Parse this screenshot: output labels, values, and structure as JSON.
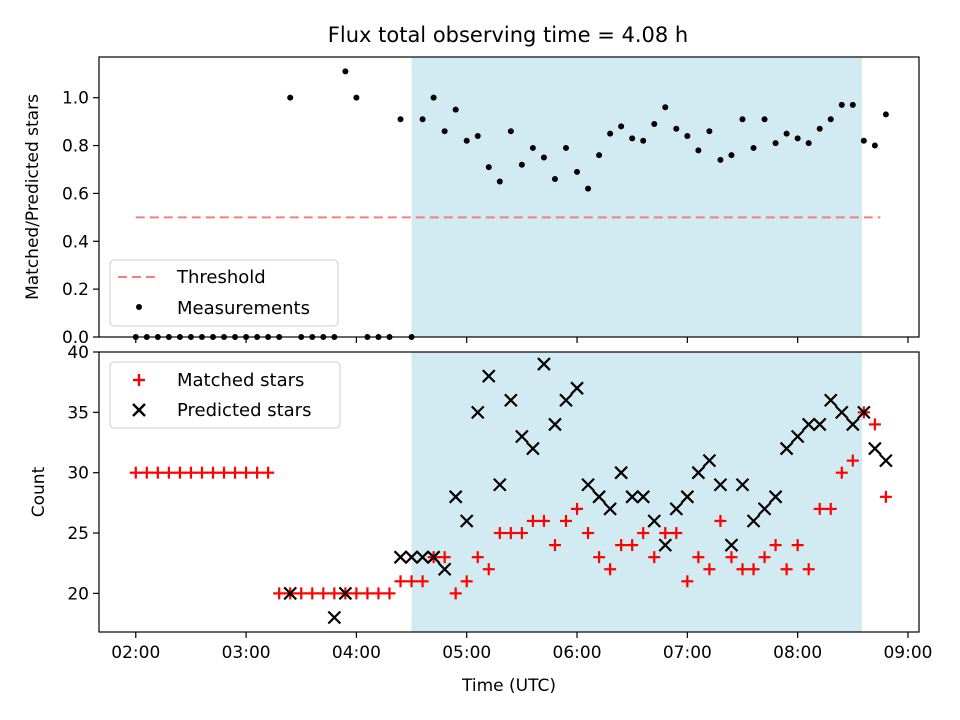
{
  "chart_data": {
    "title": "Flux total observing time = 4.08 h",
    "xlabel": "Time (UTC)",
    "xlim": [
      "01:40",
      "09:06"
    ],
    "x_ticks": [
      "02:00",
      "03:00",
      "04:00",
      "05:00",
      "06:00",
      "07:00",
      "08:00",
      "09:00"
    ],
    "shaded_interval": {
      "start": "04:30",
      "end": "08:35",
      "color": "#add8e6"
    },
    "panels": [
      {
        "id": "ratio",
        "type": "scatter",
        "ylabel": "Matched/Predicted stars",
        "ylim": [
          0,
          1.17
        ],
        "y_ticks": [
          "0.0",
          "0.2",
          "0.4",
          "0.6",
          "0.8",
          "1.0"
        ],
        "legend_position": "lower-left",
        "threshold": {
          "name": "Threshold",
          "value": 0.5,
          "x_start": "02:00",
          "x_end": "08:45",
          "color": "#f08080"
        },
        "series": [
          {
            "name": "Measurements",
            "color": "#000000",
            "marker": "dot",
            "x": [
              "02:00",
              "02:06",
              "02:12",
              "02:18",
              "02:24",
              "02:30",
              "02:36",
              "02:42",
              "02:48",
              "02:54",
              "03:00",
              "03:06",
              "03:12",
              "03:18",
              "03:24",
              "03:30",
              "03:36",
              "03:42",
              "03:48",
              "03:54",
              "04:00",
              "04:06",
              "04:12",
              "04:18",
              "04:24",
              "04:30",
              "04:36",
              "04:42",
              "04:48",
              "04:54",
              "05:00",
              "05:06",
              "05:12",
              "05:18",
              "05:24",
              "05:30",
              "05:36",
              "05:42",
              "05:48",
              "05:54",
              "06:00",
              "06:06",
              "06:12",
              "06:18",
              "06:24",
              "06:30",
              "06:36",
              "06:42",
              "06:48",
              "06:54",
              "07:00",
              "07:06",
              "07:12",
              "07:18",
              "07:24",
              "07:30",
              "07:36",
              "07:42",
              "07:48",
              "07:54",
              "08:00",
              "08:06",
              "08:12",
              "08:18",
              "08:24",
              "08:30",
              "08:36",
              "08:42",
              "08:48"
            ],
            "y": [
              0,
              0,
              0,
              0,
              0,
              0,
              0,
              0,
              0,
              0,
              0,
              0,
              0,
              0,
              1.0,
              0,
              0,
              0,
              0,
              1.11,
              1.0,
              0,
              0,
              0,
              0.91,
              0,
              0.91,
              1.0,
              0.86,
              0.95,
              0.82,
              0.84,
              0.71,
              0.65,
              0.86,
              0.72,
              0.79,
              0.75,
              0.66,
              0.79,
              0.69,
              0.62,
              0.76,
              0.85,
              0.88,
              0.83,
              0.82,
              0.89,
              0.96,
              0.87,
              0.84,
              0.78,
              0.86,
              0.74,
              0.76,
              0.91,
              0.79,
              0.91,
              0.81,
              0.85,
              0.83,
              0.81,
              0.87,
              0.91,
              0.97,
              0.97,
              0.82,
              0.8,
              0.93
            ]
          }
        ]
      },
      {
        "id": "count",
        "type": "scatter",
        "ylabel": "Count",
        "ylim": [
          16.8,
          40
        ],
        "y_ticks": [
          "20",
          "25",
          "30",
          "35",
          "40"
        ],
        "legend_position": "upper-left",
        "series": [
          {
            "name": "Matched stars",
            "color": "#ff0000",
            "marker": "plus",
            "x": [
              "02:00",
              "02:06",
              "02:12",
              "02:18",
              "02:24",
              "02:30",
              "02:36",
              "02:42",
              "02:48",
              "02:54",
              "03:00",
              "03:06",
              "03:12",
              "03:18",
              "03:24",
              "03:30",
              "03:36",
              "03:42",
              "03:48",
              "03:54",
              "04:00",
              "04:06",
              "04:12",
              "04:18",
              "04:24",
              "04:30",
              "04:36",
              "04:42",
              "04:48",
              "04:54",
              "05:00",
              "05:06",
              "05:12",
              "05:18",
              "05:24",
              "05:30",
              "05:36",
              "05:42",
              "05:48",
              "05:54",
              "06:00",
              "06:06",
              "06:12",
              "06:18",
              "06:24",
              "06:30",
              "06:36",
              "06:42",
              "06:48",
              "06:54",
              "07:00",
              "07:06",
              "07:12",
              "07:18",
              "07:24",
              "07:30",
              "07:36",
              "07:42",
              "07:48",
              "07:54",
              "08:00",
              "08:06",
              "08:12",
              "08:18",
              "08:24",
              "08:30",
              "08:36",
              "08:42",
              "08:48"
            ],
            "y": [
              30,
              30,
              30,
              30,
              30,
              30,
              30,
              30,
              30,
              30,
              30,
              30,
              30,
              20,
              20,
              20,
              20,
              20,
              20,
              20,
              20,
              20,
              20,
              20,
              21,
              21,
              21,
              23,
              23,
              20,
              21,
              23,
              22,
              25,
              25,
              25,
              26,
              26,
              24,
              26,
              27,
              25,
              23,
              22,
              24,
              24,
              25,
              23,
              25,
              25,
              21,
              23,
              22,
              26,
              23,
              22,
              22,
              23,
              24,
              22,
              24,
              22,
              27,
              27,
              30,
              31,
              35,
              34,
              28
            ]
          },
          {
            "name": "Predicted stars",
            "color": "#000000",
            "marker": "x",
            "x": [
              "03:24",
              "03:48",
              "03:54",
              "04:24",
              "04:30",
              "04:36",
              "04:42",
              "04:48",
              "04:54",
              "05:00",
              "05:06",
              "05:12",
              "05:18",
              "05:24",
              "05:30",
              "05:36",
              "05:42",
              "05:48",
              "05:54",
              "06:00",
              "06:06",
              "06:12",
              "06:18",
              "06:24",
              "06:30",
              "06:36",
              "06:42",
              "06:48",
              "06:54",
              "07:00",
              "07:06",
              "07:12",
              "07:18",
              "07:24",
              "07:30",
              "07:36",
              "07:42",
              "07:48",
              "07:54",
              "08:00",
              "08:06",
              "08:12",
              "08:18",
              "08:24",
              "08:30",
              "08:36",
              "08:42",
              "08:48"
            ],
            "y": [
              20,
              18,
              20,
              23,
              23,
              23,
              23,
              22,
              28,
              26,
              35,
              38,
              29,
              36,
              33,
              32,
              39,
              34,
              36,
              37,
              29,
              28,
              27,
              30,
              28,
              28,
              26,
              24,
              27,
              28,
              30,
              31,
              29,
              24,
              29,
              26,
              27,
              28,
              32,
              33,
              34,
              34,
              36,
              35,
              34,
              35,
              32,
              31
            ]
          }
        ]
      }
    ]
  }
}
